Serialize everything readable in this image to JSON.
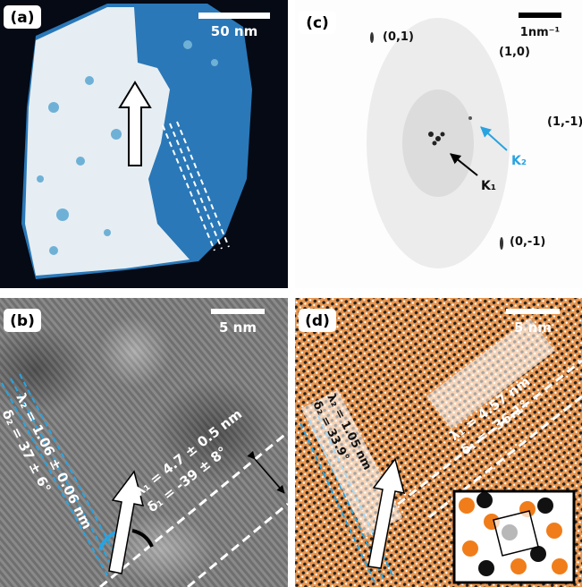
{
  "panels": {
    "a": {
      "label": "(a)",
      "scale_bar": "50 nm"
    },
    "c": {
      "label": "(c)",
      "scale_bar": "1nm⁻¹",
      "spots": [
        "(0,1)",
        "(1,0)",
        "(1,-1)",
        "(0,-1)"
      ],
      "k2": "K₂",
      "k1": "K₁"
    },
    "b": {
      "label": "(b)",
      "scale_bar": "5 nm",
      "lambda2": "λ₂ = 1.06 ± 0.06 nm",
      "delta2": "δ₂ = 37 ± 6°",
      "lambda1": "λ₁ = 4.7 ± 0.5 nm",
      "delta1": "δ₁ = -39 ± 8°"
    },
    "d": {
      "label": "(d)",
      "scale_bar": "5 nm",
      "lambda2": "λ₂ = 1.05 nm",
      "delta2": "δ₂ = 33.9°",
      "lambda1": "λ₁ = 4.57 nm",
      "delta1": "δ₁ = -36.1°"
    }
  }
}
